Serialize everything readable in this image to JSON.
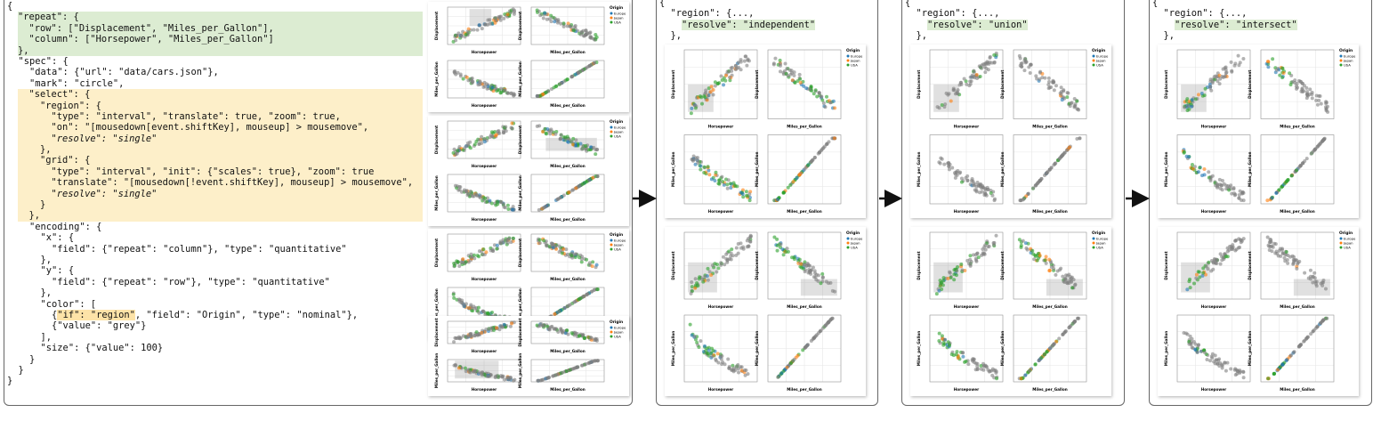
{
  "code": {
    "lines": [
      [
        "{"
      ],
      [
        "  \"repeat\": {"
      ],
      [
        "    \"row\": [\"Displacement\", \"Miles_per_Gallon\"],"
      ],
      [
        "    \"column\": [\"Horsepower\", \"Miles_per_Gallon\"]"
      ],
      [
        "  },"
      ],
      [
        "  \"spec\": {"
      ],
      [
        "    \"data\": {\"url\": \"data/cars.json\"},"
      ],
      [
        "    \"mark\": \"circle\","
      ],
      [
        "    \"select\": {"
      ],
      [
        "      \"region\": {"
      ],
      [
        "        \"type\": \"interval\", \"translate\": true, \"zoom\": true,"
      ],
      [
        "        \"on\": \"[mousedown[event.shiftKey], mouseup] > mousemove\","
      ],
      [
        "        \"resolve\": \"single\""
      ],
      [
        "      },"
      ],
      [
        "      \"grid\": {"
      ],
      [
        "        \"type\": \"interval\", \"init\": {\"scales\": true}, \"zoom\": true"
      ],
      [
        "        \"translate\": \"[mousedown[!event.shiftKey], mouseup] > mousemove\","
      ],
      [
        "        \"resolve\": \"single\""
      ],
      [
        "      }"
      ],
      [
        "    },"
      ],
      [
        "    \"encoding\": {"
      ],
      [
        "      \"x\": {"
      ],
      [
        "        \"field\": {\"repeat\": \"column\"}, \"type\": \"quantitative\""
      ],
      [
        "      },"
      ],
      [
        "      \"y\": {"
      ],
      [
        "        \"field\": {\"repeat\": \"row\"}, \"type\": \"quantitative\""
      ],
      [
        "      },"
      ],
      [
        "      \"color\": ["
      ],
      [
        "        {",
        "\"if\": \"region\"",
        ", \"field\": \"Origin\", \"type\": \"nominal\"},"
      ],
      [
        "        {\"value\": \"grey\"}"
      ],
      [
        "      ],"
      ],
      [
        "      \"size\": {\"value\": 100}"
      ],
      [
        "    }"
      ],
      [
        "  }"
      ],
      [
        "}"
      ]
    ]
  },
  "panels": [
    {
      "lines": [
        [
          "{"
        ],
        [
          "  \"region\": {...,"
        ],
        [
          "    ",
          "\"resolve\": \"independent\""
        ],
        [
          "  },"
        ]
      ]
    },
    {
      "lines": [
        [
          "{"
        ],
        [
          "  \"region\": {...,"
        ],
        [
          "    ",
          "\"resolve\": \"union\""
        ],
        [
          "  },"
        ]
      ]
    },
    {
      "lines": [
        [
          "{"
        ],
        [
          "  \"region\": {...,"
        ],
        [
          "    ",
          "\"resolve\": \"intersect\""
        ],
        [
          "  },"
        ]
      ]
    }
  ],
  "plot": {
    "rows": [
      "Displacement",
      "Miles_per_Gallon"
    ],
    "columns": [
      "Horsepower",
      "Miles_per_Gallon"
    ],
    "legend_title": "Origin",
    "legend": [
      "Europe",
      "Japan",
      "USA"
    ]
  }
}
